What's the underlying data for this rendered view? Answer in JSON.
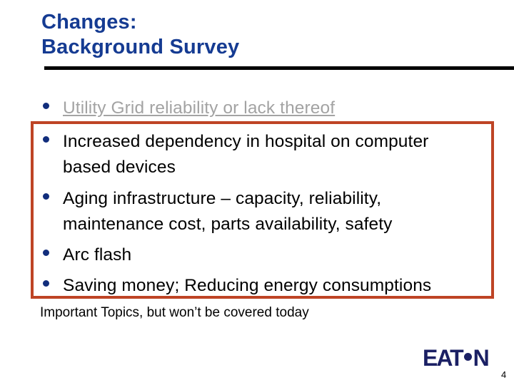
{
  "slide": {
    "title": {
      "line1": "Changes:",
      "line2": "Background Survey"
    },
    "bullets": [
      {
        "style": "dimmed-underlined",
        "lines": [
          "Utility Grid reliability or lack thereof"
        ]
      },
      {
        "style": "normal",
        "lines": [
          "Increased dependency in hospital on computer",
          "based devices"
        ]
      },
      {
        "style": "normal",
        "lines": [
          "Aging infrastructure – capacity, reliability,",
          "maintenance cost, parts availability, safety"
        ]
      },
      {
        "style": "normal",
        "lines": [
          "Arc flash"
        ]
      },
      {
        "style": "normal",
        "lines": [
          "Saving money; Reducing energy consumptions"
        ]
      }
    ],
    "footnote": "Important Topics, but won’t be covered today",
    "logo": {
      "brand": "Eaton",
      "text_left": "EAT",
      "text_right": "N"
    },
    "page_number": "4",
    "colors": {
      "title_blue": "#153b92",
      "rule_black": "#000000",
      "bullet_dot_navy": "#112d7c",
      "dimmed_gray": "#a3a3a3",
      "body_text": "#000000",
      "highlight_border": "#be4425",
      "logo_navy": "#1b2064",
      "background": "#ffffff"
    }
  }
}
